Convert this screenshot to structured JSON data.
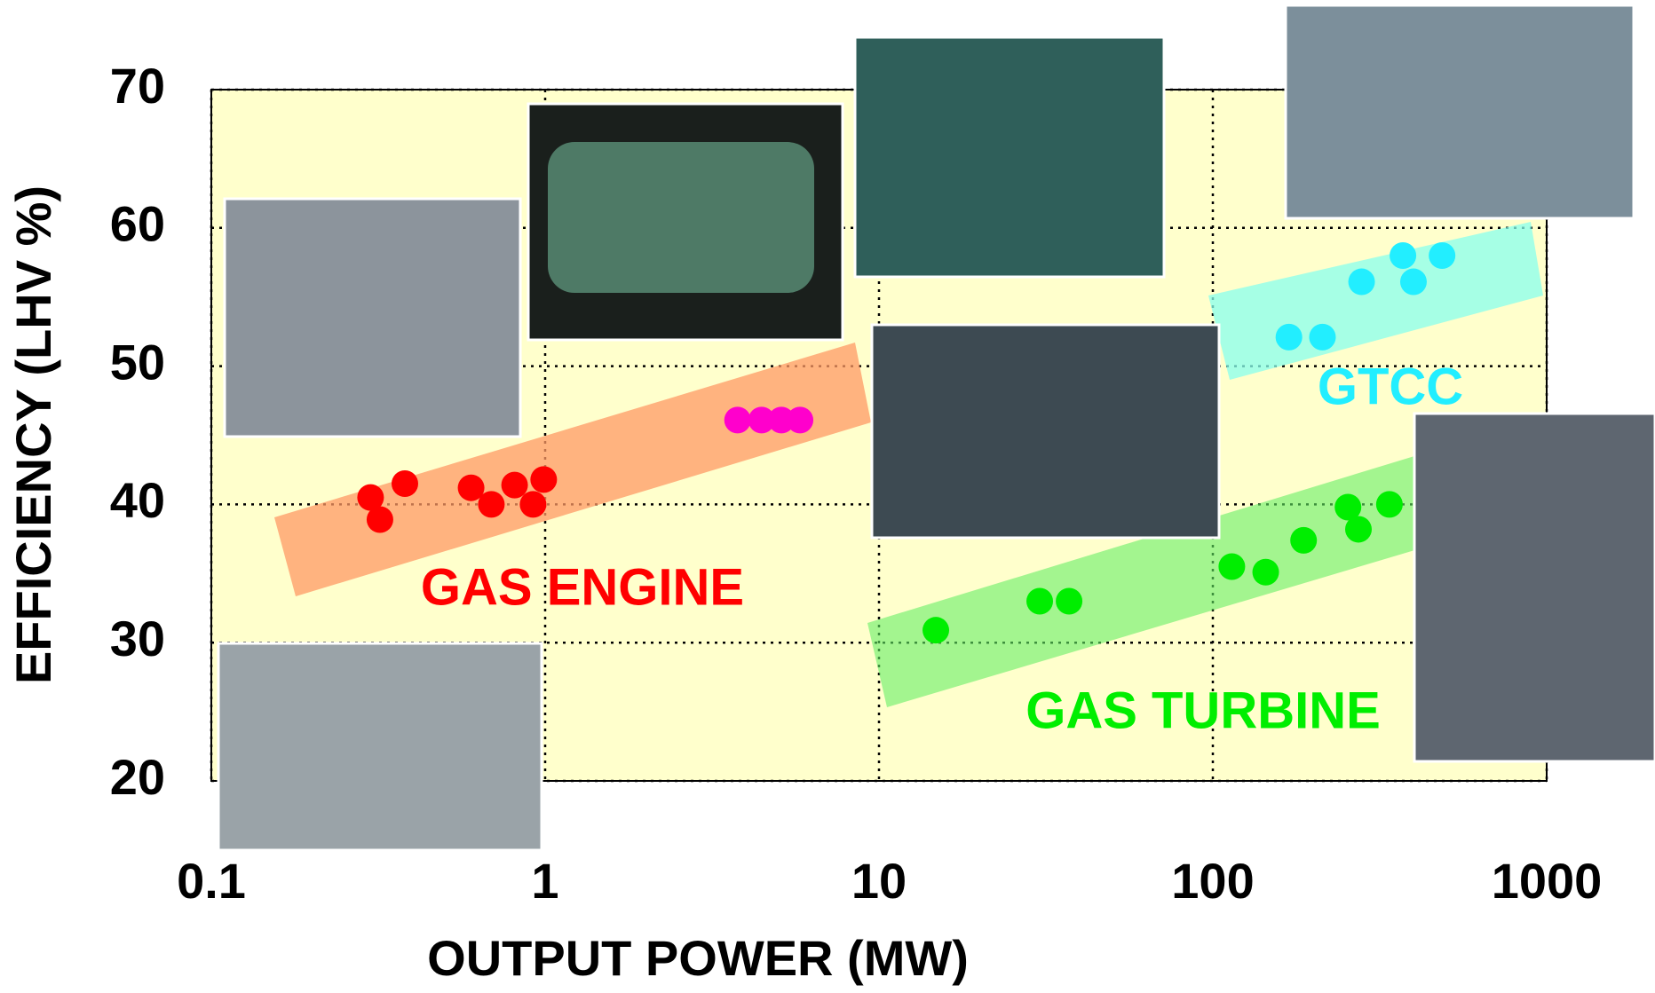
{
  "chart_data": {
    "type": "scatter",
    "xlabel": "OUTPUT POWER (MW)",
    "ylabel": "EFFICIENCY  (LHV %)",
    "xscale": "log",
    "xlim": [
      0.1,
      1000
    ],
    "xticks": [
      0.1,
      1,
      10,
      100,
      1000
    ],
    "ylim": [
      20,
      70
    ],
    "yticks": [
      20,
      30,
      40,
      50,
      60,
      70
    ],
    "grid": true,
    "series": [
      {
        "name": "GAS ENGINE",
        "color": "#ff0000",
        "x": [
          0.3,
          0.32,
          0.38,
          0.6,
          0.69,
          0.81,
          0.92,
          0.99
        ],
        "values": [
          40.5,
          38.9,
          41.5,
          41.2,
          40.0,
          41.4,
          40.0,
          41.8
        ]
      },
      {
        "color": "#ff00cc",
        "x": [
          3.77,
          4.45,
          5.1,
          5.8
        ],
        "values": [
          46.1,
          46.1,
          46.1,
          46.1
        ]
      },
      {
        "name": "GAS TURBINE",
        "color": "#00ee00",
        "x": [
          14.8,
          30.3,
          37.1,
          114,
          144,
          187,
          254,
          273,
          338
        ],
        "values": [
          30.9,
          33.0,
          33.0,
          35.5,
          35.1,
          37.4,
          39.8,
          38.2,
          40.0
        ]
      },
      {
        "name": "GTCC",
        "color": "#22eeff",
        "x": [
          169,
          213,
          279,
          371,
          399,
          486
        ],
        "values": [
          52.1,
          52.1,
          56.1,
          58.0,
          56.1,
          58.0
        ]
      }
    ]
  }
}
